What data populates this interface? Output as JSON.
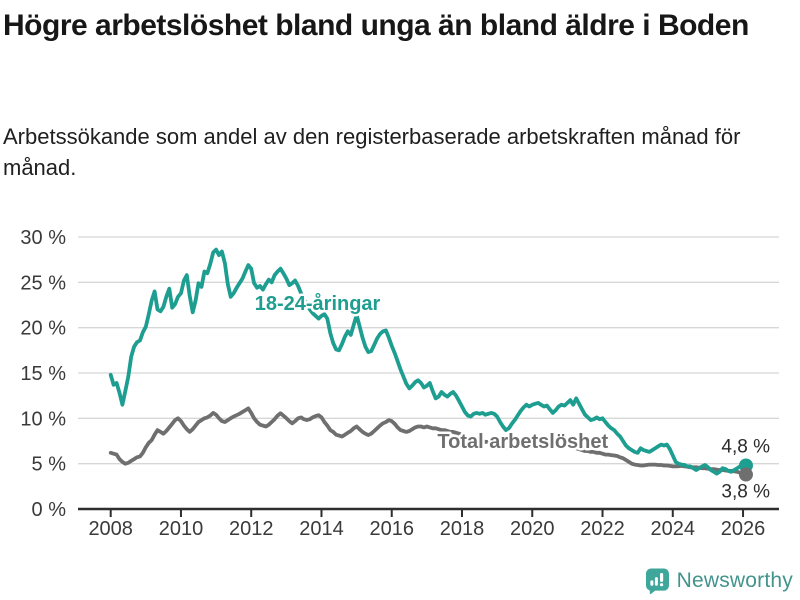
{
  "header": {
    "title": "Högre arbetslöshet bland unga än bland äldre i Boden",
    "subtitle": "Arbetssökande som andel av den registerbaserade arbetskraften månad för månad."
  },
  "chart_data": {
    "type": "line",
    "title": "Högre arbetslöshet bland unga än bland äldre i Boden",
    "subtitle": "Arbetssökande som andel av den registerbaserade arbetskraften månad för månad.",
    "grid": true,
    "legend": "inline-labels",
    "ylim": [
      0,
      30
    ],
    "x_start": 2008,
    "points_per_year": 12,
    "x_ticks": [
      2008,
      2010,
      2012,
      2014,
      2016,
      2018,
      2020,
      2022,
      2024,
      2026
    ],
    "y_ticks": [
      {
        "value": 0,
        "label": "0 %"
      },
      {
        "value": 5,
        "label": "5 %"
      },
      {
        "value": 10,
        "label": "10 %"
      },
      {
        "value": 15,
        "label": "15 %"
      },
      {
        "value": 20,
        "label": "20 %"
      },
      {
        "value": 25,
        "label": "25 %"
      },
      {
        "value": 30,
        "label": "30 %"
      }
    ],
    "grid_color": "#d7d7d7",
    "axis_color": "#2e2e2e",
    "series": [
      {
        "id": "youth",
        "name": "18-24-åringar",
        "color": "#1d9e90",
        "end_label": "4,8 %",
        "end_value": 4.8,
        "label_pos": {
          "year": 2012.1,
          "value": 22.7
        },
        "end_label_dy": -13,
        "values": [
          14.8,
          13.7,
          13.9,
          12.8,
          11.5,
          13.0,
          14.6,
          16.8,
          17.9,
          18.4,
          18.6,
          19.5,
          20.1,
          21.5,
          23.0,
          24.0,
          22.0,
          21.8,
          22.3,
          23.4,
          24.3,
          22.2,
          22.6,
          23.4,
          23.8,
          25.2,
          25.8,
          23.5,
          21.7,
          23.0,
          24.9,
          24.5,
          26.2,
          26.0,
          27.0,
          28.3,
          28.6,
          28.0,
          28.4,
          27.1,
          24.8,
          23.4,
          23.8,
          24.4,
          24.9,
          25.4,
          26.2,
          26.9,
          26.5,
          24.9,
          24.4,
          24.6,
          24.2,
          24.8,
          25.3,
          25.0,
          25.8,
          26.2,
          26.5,
          26.0,
          25.4,
          24.7,
          24.9,
          25.2,
          24.6,
          23.8,
          23.2,
          22.6,
          22.0,
          21.6,
          21.3,
          21.0,
          21.3,
          21.5,
          21.0,
          19.4,
          18.3,
          17.6,
          17.5,
          18.2,
          19.0,
          19.6,
          19.2,
          20.3,
          21.4,
          20.2,
          18.9,
          17.9,
          17.3,
          17.4,
          18.1,
          18.8,
          19.3,
          19.6,
          19.7,
          18.9,
          18.0,
          17.2,
          16.3,
          15.4,
          14.6,
          13.8,
          13.3,
          13.6,
          14.0,
          14.2,
          13.9,
          13.4,
          13.6,
          13.9,
          13.0,
          12.2,
          12.4,
          12.9,
          12.6,
          12.4,
          12.7,
          12.9,
          12.5,
          11.9,
          11.3,
          10.7,
          10.3,
          10.2,
          10.5,
          10.6,
          10.5,
          10.6,
          10.4,
          10.5,
          10.6,
          10.5,
          10.2,
          9.6,
          9.1,
          8.7,
          8.9,
          9.4,
          9.8,
          10.3,
          10.8,
          11.2,
          11.5,
          11.3,
          11.5,
          11.6,
          11.7,
          11.5,
          11.3,
          11.4,
          11.0,
          10.6,
          10.9,
          11.3,
          11.5,
          11.4,
          11.7,
          12.0,
          11.5,
          12.2,
          11.6,
          11.0,
          10.4,
          10.1,
          9.8,
          9.9,
          10.1,
          9.9,
          10.0,
          9.6,
          9.2,
          8.9,
          8.7,
          8.3,
          8.0,
          7.5,
          7.0,
          6.7,
          6.5,
          6.3,
          6.2,
          6.7,
          6.5,
          6.4,
          6.3,
          6.5,
          6.7,
          6.9,
          7.1,
          7.0,
          7.1,
          6.6,
          5.9,
          5.2,
          5.0,
          4.9,
          4.85,
          4.7,
          4.7,
          4.5,
          4.3,
          4.5,
          4.7,
          4.85,
          4.6,
          4.3,
          4.1,
          3.9,
          4.1,
          4.5,
          4.4,
          4.2,
          4.1,
          4.3,
          4.5,
          4.7,
          4.6,
          4.8
        ]
      },
      {
        "id": "total",
        "name": "Total arbetslöshet",
        "color": "#6f6f6f",
        "end_label": "3,8 %",
        "end_value": 3.8,
        "label_pos": {
          "year": 2017.3,
          "value": 7.5
        },
        "end_label_dy": 23,
        "values": [
          6.2,
          6.1,
          6.0,
          5.5,
          5.2,
          5.0,
          5.1,
          5.3,
          5.5,
          5.7,
          5.8,
          6.2,
          6.8,
          7.3,
          7.6,
          8.2,
          8.7,
          8.5,
          8.3,
          8.6,
          9.0,
          9.4,
          9.8,
          10.0,
          9.7,
          9.2,
          8.8,
          8.5,
          8.8,
          9.2,
          9.6,
          9.8,
          10.0,
          10.1,
          10.3,
          10.6,
          10.4,
          10.0,
          9.7,
          9.6,
          9.8,
          10.0,
          10.2,
          10.35,
          10.5,
          10.7,
          10.9,
          11.1,
          10.6,
          10.0,
          9.6,
          9.3,
          9.2,
          9.1,
          9.3,
          9.6,
          9.9,
          10.3,
          10.55,
          10.3,
          10.0,
          9.7,
          9.45,
          9.7,
          10.0,
          10.1,
          9.9,
          9.8,
          9.9,
          10.1,
          10.25,
          10.35,
          10.1,
          9.6,
          9.2,
          8.7,
          8.5,
          8.2,
          8.1,
          8.0,
          8.2,
          8.4,
          8.6,
          8.9,
          9.1,
          8.8,
          8.5,
          8.3,
          8.15,
          8.3,
          8.6,
          8.9,
          9.2,
          9.45,
          9.6,
          9.8,
          9.7,
          9.4,
          9.0,
          8.7,
          8.6,
          8.5,
          8.6,
          8.8,
          9.0,
          9.1,
          9.1,
          9.0,
          9.1,
          9.0,
          8.9,
          8.9,
          8.8,
          8.7,
          8.7,
          8.6,
          8.5,
          8.5,
          8.4,
          8.3,
          8.2,
          8.0,
          7.9,
          7.8,
          7.7,
          7.6,
          7.6,
          7.5,
          7.4,
          7.4,
          7.3,
          7.2,
          7.1,
          7.0,
          6.9,
          6.8,
          6.8,
          6.9,
          6.9,
          7.0,
          7.0,
          7.1,
          7.1,
          7.0,
          7.0,
          7.1,
          7.3,
          7.6,
          7.7,
          7.6,
          7.5,
          7.4,
          7.4,
          7.3,
          7.2,
          7.1,
          7.0,
          6.9,
          6.8,
          6.7,
          6.6,
          6.5,
          6.4,
          6.4,
          6.3,
          6.3,
          6.2,
          6.2,
          6.1,
          6.0,
          6.0,
          5.95,
          5.9,
          5.85,
          5.7,
          5.6,
          5.4,
          5.2,
          5.0,
          4.9,
          4.85,
          4.8,
          4.8,
          4.85,
          4.9,
          4.9,
          4.9,
          4.85,
          4.85,
          4.8,
          4.8,
          4.75,
          4.7,
          4.7,
          4.72,
          4.75,
          4.7,
          4.65,
          4.6,
          4.6,
          4.6,
          4.55,
          4.5,
          4.5,
          4.45,
          4.4,
          4.4,
          4.35,
          4.3,
          4.3,
          4.25,
          4.2,
          4.2,
          4.15,
          4.1,
          4.0,
          3.9,
          3.8
        ]
      }
    ]
  },
  "footer": {
    "brand": "Newsworthy",
    "brand_icon": "newsworthy-chart-bubble-icon",
    "brand_color": "#43948d",
    "icon_color": "#3fa69b"
  }
}
